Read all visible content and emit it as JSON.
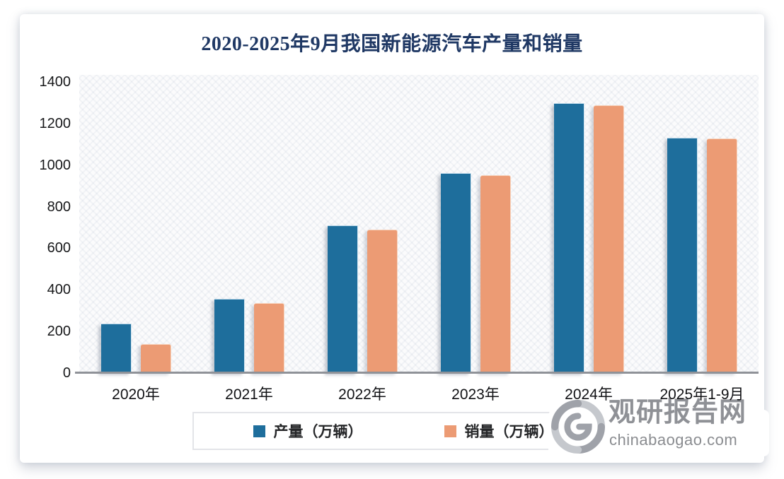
{
  "title": "2020-2025年9月我国新能源汽车产量和销量",
  "chart_data": {
    "type": "bar",
    "title": "2020-2025年9月我国新能源汽车产量和销量",
    "categories": [
      "2020年",
      "2021年",
      "2022年",
      "2023年",
      "2024年",
      "2025年1-9月"
    ],
    "series": [
      {
        "name": "产量（万辆）",
        "color": "#1e6e9c",
        "values": [
          235,
          355,
          706,
          958,
          1295,
          1128
        ]
      },
      {
        "name": "销量（万辆）",
        "color": "#ec9b74",
        "values": [
          135,
          332,
          688,
          948,
          1285,
          1124
        ]
      }
    ],
    "xlabel": "",
    "ylabel": "",
    "ylim": [
      0,
      1400
    ],
    "ytick_step": 200,
    "grid": false,
    "legend_position": "bottom"
  },
  "watermark": {
    "site_name": "观研报告网",
    "domain": "chinabaogao.com"
  },
  "colors": {
    "title_text": "#1f3864",
    "production_bar": "#1e6e9c",
    "sales_bar": "#ec9b74",
    "axis_line": "#8f9298",
    "watermark_gray": "#8f9196"
  }
}
